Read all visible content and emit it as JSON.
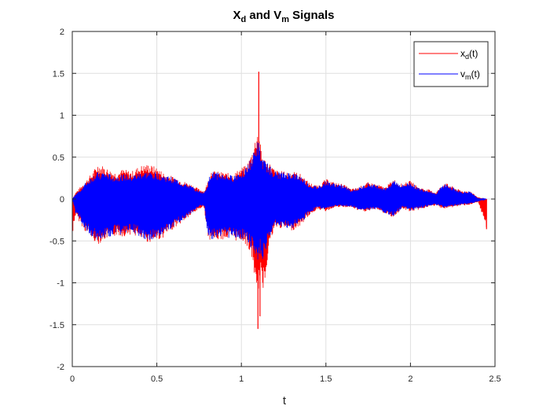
{
  "chart_data": {
    "type": "line",
    "title": {
      "main1": "X",
      "sub1": "d",
      "mid": " and V",
      "sub2": "m",
      "tail": " Signals"
    },
    "xlabel": "t",
    "ylabel": "",
    "xlim": [
      0,
      2.5
    ],
    "ylim": [
      -2,
      2
    ],
    "grid": true,
    "legend_position": "top-right",
    "xticks": [
      0,
      0.5,
      1,
      1.5,
      2,
      2.5
    ],
    "xtick_labels": [
      "0",
      "0.5",
      "1",
      "1.5",
      "2",
      "2.5"
    ],
    "yticks": [
      -2,
      -1.5,
      -1,
      -0.5,
      0,
      0.5,
      1,
      1.5,
      2
    ],
    "ytick_labels": [
      "-2",
      "-1.5",
      "-1",
      "-0.5",
      "0",
      "0.5",
      "1",
      "1.5",
      "2"
    ],
    "series": [
      {
        "name": {
          "base": "x",
          "sub": "d",
          "tail": "(t)"
        },
        "color": "#ff0000",
        "envelope": {
          "t": [
            0,
            0.02,
            0.05,
            0.08,
            0.12,
            0.15,
            0.18,
            0.22,
            0.26,
            0.3,
            0.35,
            0.4,
            0.45,
            0.5,
            0.55,
            0.6,
            0.65,
            0.7,
            0.75,
            0.78,
            0.8,
            0.82,
            0.85,
            0.9,
            0.95,
            1.0,
            1.03,
            1.06,
            1.08,
            1.09,
            1.1,
            1.11,
            1.12,
            1.14,
            1.16,
            1.2,
            1.25,
            1.3,
            1.35,
            1.4,
            1.45,
            1.5,
            1.55,
            1.6,
            1.65,
            1.7,
            1.75,
            1.8,
            1.85,
            1.9,
            1.95,
            2.0,
            2.05,
            2.1,
            2.15,
            2.2,
            2.25,
            2.3,
            2.35,
            2.4,
            2.45
          ],
          "upper": [
            0.0,
            0.08,
            0.15,
            0.22,
            0.32,
            0.42,
            0.4,
            0.35,
            0.32,
            0.36,
            0.33,
            0.4,
            0.42,
            0.38,
            0.3,
            0.27,
            0.22,
            0.18,
            0.12,
            0.1,
            0.2,
            0.35,
            0.33,
            0.32,
            0.3,
            0.38,
            0.4,
            0.55,
            0.7,
            0.82,
            0.85,
            0.7,
            0.55,
            0.48,
            0.45,
            0.35,
            0.33,
            0.34,
            0.3,
            0.2,
            0.16,
            0.24,
            0.2,
            0.18,
            0.12,
            0.15,
            0.2,
            0.18,
            0.14,
            0.24,
            0.18,
            0.22,
            0.14,
            0.12,
            0.08,
            0.2,
            0.15,
            0.1,
            0.1,
            0.02,
            0.0
          ],
          "lower": [
            -0.38,
            -0.2,
            -0.3,
            -0.4,
            -0.48,
            -0.55,
            -0.5,
            -0.47,
            -0.44,
            -0.45,
            -0.42,
            -0.48,
            -0.52,
            -0.5,
            -0.45,
            -0.35,
            -0.28,
            -0.2,
            -0.12,
            -0.1,
            -0.45,
            -0.5,
            -0.5,
            -0.48,
            -0.5,
            -0.5,
            -0.55,
            -0.7,
            -0.95,
            -1.3,
            -1.1,
            -0.9,
            -1.15,
            -1.0,
            -0.6,
            -0.35,
            -0.35,
            -0.38,
            -0.32,
            -0.2,
            -0.12,
            -0.15,
            -0.1,
            -0.1,
            -0.1,
            -0.15,
            -0.15,
            -0.12,
            -0.18,
            -0.22,
            -0.12,
            -0.15,
            -0.13,
            -0.1,
            -0.08,
            -0.12,
            -0.1,
            -0.08,
            -0.07,
            -0.04,
            -0.35
          ]
        },
        "spikes": [
          {
            "t": 1.103,
            "y": 1.52
          },
          {
            "t": 1.098,
            "y": -1.55
          },
          {
            "t": 1.11,
            "y": -1.4
          },
          {
            "t": 2.45,
            "y": -0.36
          },
          {
            "t": 0.003,
            "y": -0.38
          }
        ]
      },
      {
        "name": {
          "base": "v",
          "sub": "m",
          "tail": "(t)"
        },
        "color": "#0000ff",
        "envelope": {
          "t": [
            0,
            0.02,
            0.05,
            0.08,
            0.12,
            0.15,
            0.18,
            0.22,
            0.26,
            0.3,
            0.35,
            0.4,
            0.45,
            0.5,
            0.55,
            0.6,
            0.65,
            0.7,
            0.75,
            0.78,
            0.8,
            0.82,
            0.85,
            0.9,
            0.95,
            1.0,
            1.03,
            1.06,
            1.08,
            1.09,
            1.1,
            1.11,
            1.12,
            1.14,
            1.16,
            1.2,
            1.25,
            1.3,
            1.35,
            1.4,
            1.45,
            1.5,
            1.55,
            1.6,
            1.65,
            1.7,
            1.75,
            1.8,
            1.85,
            1.9,
            1.95,
            2.0,
            2.05,
            2.1,
            2.15,
            2.2,
            2.25,
            2.3,
            2.35,
            2.4,
            2.45
          ],
          "upper": [
            0.0,
            0.06,
            0.12,
            0.2,
            0.28,
            0.32,
            0.33,
            0.3,
            0.28,
            0.3,
            0.28,
            0.32,
            0.33,
            0.32,
            0.28,
            0.26,
            0.2,
            0.16,
            0.1,
            0.08,
            0.18,
            0.33,
            0.32,
            0.3,
            0.28,
            0.35,
            0.38,
            0.5,
            0.6,
            0.68,
            0.7,
            0.6,
            0.5,
            0.45,
            0.42,
            0.33,
            0.32,
            0.32,
            0.28,
            0.18,
            0.15,
            0.22,
            0.19,
            0.17,
            0.11,
            0.14,
            0.19,
            0.17,
            0.13,
            0.23,
            0.17,
            0.21,
            0.13,
            0.11,
            0.07,
            0.19,
            0.14,
            0.09,
            0.09,
            0.01,
            0.0
          ],
          "lower": [
            0.0,
            -0.18,
            -0.28,
            -0.38,
            -0.45,
            -0.5,
            -0.48,
            -0.45,
            -0.42,
            -0.43,
            -0.4,
            -0.45,
            -0.5,
            -0.48,
            -0.42,
            -0.33,
            -0.26,
            -0.18,
            -0.1,
            -0.08,
            -0.42,
            -0.48,
            -0.48,
            -0.45,
            -0.48,
            -0.48,
            -0.52,
            -0.6,
            -0.7,
            -0.75,
            -0.72,
            -0.65,
            -0.75,
            -0.7,
            -0.5,
            -0.33,
            -0.34,
            -0.36,
            -0.3,
            -0.18,
            -0.11,
            -0.14,
            -0.09,
            -0.09,
            -0.09,
            -0.14,
            -0.14,
            -0.11,
            -0.17,
            -0.21,
            -0.11,
            -0.14,
            -0.12,
            -0.09,
            -0.07,
            -0.11,
            -0.09,
            -0.07,
            -0.06,
            -0.03,
            0.0
          ]
        }
      }
    ]
  }
}
